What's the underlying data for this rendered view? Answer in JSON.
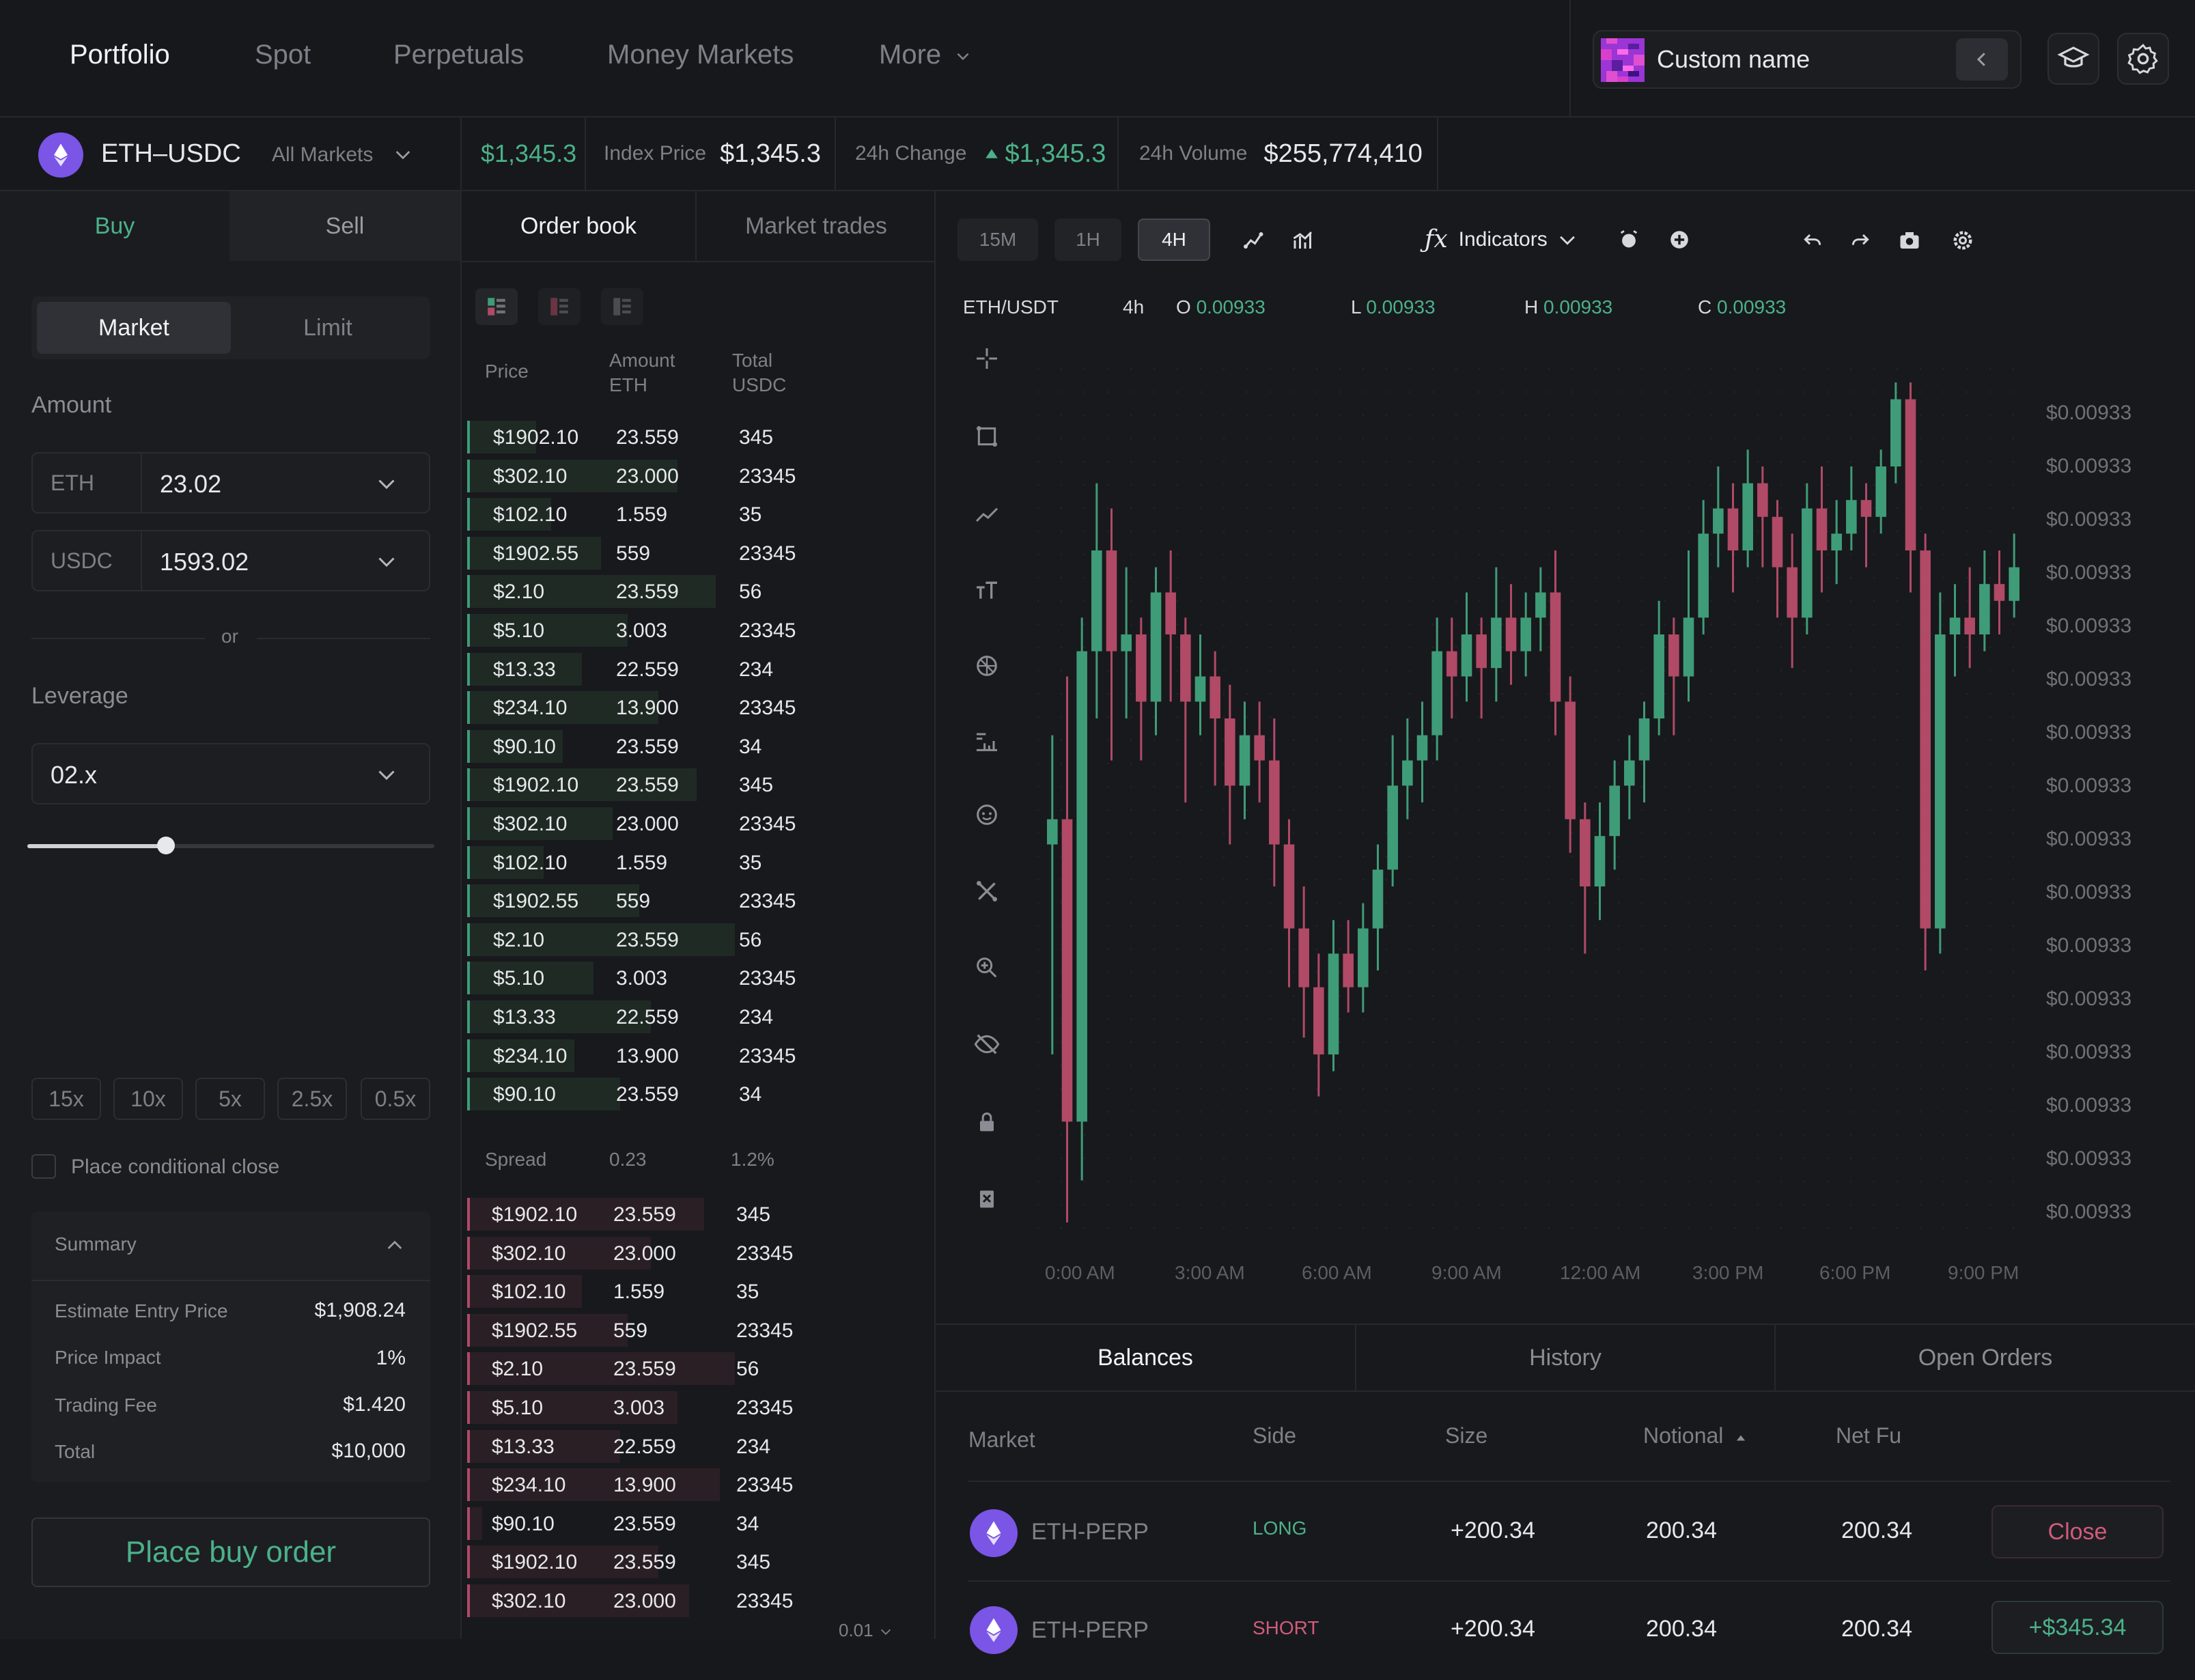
{
  "nav": {
    "items": [
      "Portfolio",
      "Spot",
      "Perpetuals",
      "Money Markets",
      "More"
    ],
    "active": 0,
    "user_name": "Custom name"
  },
  "ticker": {
    "pair": "ETH–USDC",
    "all_markets": "All Markets",
    "last_price": "$1,345.3",
    "index_label": "Index Price",
    "index_value": "$1,345.3",
    "change_label": "24h Change",
    "change_value": "$1,345.3",
    "volume_label": "24h Volume",
    "volume_value": "$255,774,410"
  },
  "order_form": {
    "buy_label": "Buy",
    "sell_label": "Sell",
    "market_label": "Market",
    "limit_label": "Limit",
    "amount_label": "Amount",
    "eth_unit": "ETH",
    "eth_value": "23.02",
    "usdc_unit": "USDC",
    "usdc_value": "1593.02",
    "or_label": "or",
    "leverage_label": "Leverage",
    "leverage_value": "02.x",
    "leverage_slider_fraction": 0.34,
    "leverage_presets": [
      "15x",
      "10x",
      "5x",
      "2.5x",
      "0.5x"
    ],
    "conditional_close_label": "Place conditional close",
    "summary_label": "Summary",
    "summary_rows": [
      {
        "label": "Estimate Entry Price",
        "value": "$1,908.24"
      },
      {
        "label": "Price Impact",
        "value": "1%"
      },
      {
        "label": "Trading Fee",
        "value": "$1.420"
      },
      {
        "label": "Total",
        "value": "$10,000"
      }
    ],
    "submit_label": "Place buy order"
  },
  "order_book": {
    "tab_orderbook": "Order book",
    "tab_trades": "Market trades",
    "col_price": "Price",
    "col_amount": "Amount",
    "col_amount_unit": "ETH",
    "col_total": "Total",
    "col_total_unit": "USDC",
    "asks": [
      [
        "$1902.10",
        "23.559",
        "345"
      ],
      [
        "$302.10",
        "23.000",
        "23345"
      ],
      [
        "$102.10",
        "1.559",
        "35"
      ],
      [
        "$1902.55",
        "559",
        "23345"
      ],
      [
        "$2.10",
        "23.559",
        "56"
      ],
      [
        "$5.10",
        "3.003",
        "23345"
      ],
      [
        "$13.33",
        "22.559",
        "234"
      ],
      [
        "$234.10",
        "13.900",
        "23345"
      ],
      [
        "$90.10",
        "23.559",
        "34"
      ],
      [
        "$1902.10",
        "23.559",
        "345"
      ],
      [
        "$302.10",
        "23.000",
        "23345"
      ],
      [
        "$102.10",
        "1.559",
        "35"
      ],
      [
        "$1902.55",
        "559",
        "23345"
      ],
      [
        "$2.10",
        "23.559",
        "56"
      ],
      [
        "$5.10",
        "3.003",
        "23345"
      ],
      [
        "$13.33",
        "22.559",
        "234"
      ],
      [
        "$234.10",
        "13.900",
        "23345"
      ],
      [
        "$90.10",
        "23.559",
        "34"
      ]
    ],
    "spread_label": "Spread",
    "spread_value": "0.23",
    "spread_pct": "1.2%",
    "bids": [
      [
        "$1902.10",
        "23.559",
        "345"
      ],
      [
        "$302.10",
        "23.000",
        "23345"
      ],
      [
        "$102.10",
        "1.559",
        "35"
      ],
      [
        "$1902.55",
        "559",
        "23345"
      ],
      [
        "$2.10",
        "23.559",
        "56"
      ],
      [
        "$5.10",
        "3.003",
        "23345"
      ],
      [
        "$13.33",
        "22.559",
        "234"
      ],
      [
        "$234.10",
        "13.900",
        "23345"
      ],
      [
        "$90.10",
        "23.559",
        "34"
      ],
      [
        "$1902.10",
        "23.559",
        "345"
      ],
      [
        "$302.10",
        "23.000",
        "23345"
      ]
    ],
    "ask_depth": [
      0.18,
      0.55,
      0.22,
      0.35,
      0.65,
      0.42,
      0.3,
      0.5,
      0.25,
      0.6,
      0.38,
      0.2,
      0.45,
      0.7,
      0.33,
      0.48,
      0.28,
      0.4
    ],
    "bid_depth": [
      0.62,
      0.48,
      0.3,
      0.42,
      0.7,
      0.55,
      0.4,
      0.66,
      0.04,
      0.5,
      0.58
    ],
    "precision": "0.01"
  },
  "chart": {
    "timeframes": [
      "15M",
      "1H",
      "4H"
    ],
    "active_timeframe": 2,
    "indicators_label": "Indicators",
    "symbol": "ETH/USDT",
    "interval": "4h",
    "o_label": "O",
    "o_value": "0.00933",
    "l_label": "L",
    "l_value": "0.00933",
    "h_label": "H",
    "h_value": "0.00933",
    "c_label": "C",
    "c_value": "0.00933",
    "colors": {
      "up": "#3f9c78",
      "down": "#b04a66"
    }
  },
  "chart_data": {
    "type": "candlestick",
    "y_tick_labels": [
      "$0.00933",
      "$0.00933",
      "$0.00933",
      "$0.00933",
      "$0.00933",
      "$0.00933",
      "$0.00933",
      "$0.00933",
      "$0.00933",
      "$0.00933",
      "$0.00933",
      "$0.00933",
      "$0.00933",
      "$0.00933",
      "$0.00933",
      "$0.00933"
    ],
    "x_tick_labels": [
      "0:00 AM",
      "3:00 AM",
      "6:00 AM",
      "9:00 AM",
      "12:00 AM",
      "3:00 PM",
      "6:00 PM",
      "9:00 PM"
    ],
    "ylim": [
      0,
      100
    ],
    "candles": [
      [
        45,
        48,
        20,
        58
      ],
      [
        48,
        12,
        0,
        65
      ],
      [
        12,
        68,
        5,
        72
      ],
      [
        68,
        80,
        60,
        88
      ],
      [
        80,
        68,
        55,
        85
      ],
      [
        68,
        70,
        60,
        78
      ],
      [
        70,
        62,
        55,
        72
      ],
      [
        62,
        75,
        58,
        78
      ],
      [
        75,
        70,
        62,
        80
      ],
      [
        70,
        62,
        50,
        72
      ],
      [
        62,
        65,
        58,
        70
      ],
      [
        65,
        60,
        52,
        68
      ],
      [
        60,
        52,
        45,
        64
      ],
      [
        52,
        58,
        48,
        62
      ],
      [
        58,
        55,
        50,
        62
      ],
      [
        55,
        45,
        40,
        60
      ],
      [
        45,
        35,
        28,
        48
      ],
      [
        35,
        28,
        22,
        40
      ],
      [
        28,
        20,
        15,
        32
      ],
      [
        20,
        32,
        18,
        36
      ],
      [
        32,
        28,
        25,
        36
      ],
      [
        28,
        35,
        25,
        38
      ],
      [
        35,
        42,
        30,
        45
      ],
      [
        42,
        52,
        40,
        58
      ],
      [
        52,
        55,
        48,
        60
      ],
      [
        55,
        58,
        50,
        62
      ],
      [
        58,
        68,
        55,
        72
      ],
      [
        68,
        65,
        60,
        72
      ],
      [
        65,
        70,
        62,
        75
      ],
      [
        70,
        66,
        60,
        72
      ],
      [
        66,
        72,
        62,
        78
      ],
      [
        72,
        68,
        64,
        76
      ],
      [
        68,
        72,
        65,
        75
      ],
      [
        72,
        75,
        68,
        78
      ],
      [
        75,
        62,
        58,
        80
      ],
      [
        62,
        48,
        44,
        65
      ],
      [
        48,
        40,
        32,
        50
      ],
      [
        40,
        46,
        36,
        50
      ],
      [
        46,
        52,
        42,
        55
      ],
      [
        52,
        55,
        48,
        58
      ],
      [
        55,
        60,
        50,
        62
      ],
      [
        60,
        70,
        58,
        74
      ],
      [
        70,
        65,
        58,
        72
      ],
      [
        65,
        72,
        62,
        80
      ],
      [
        72,
        82,
        70,
        86
      ],
      [
        82,
        85,
        78,
        90
      ],
      [
        85,
        80,
        75,
        88
      ],
      [
        80,
        88,
        78,
        92
      ],
      [
        88,
        84,
        78,
        90
      ],
      [
        84,
        78,
        72,
        86
      ],
      [
        78,
        72,
        66,
        82
      ],
      [
        72,
        85,
        70,
        88
      ],
      [
        85,
        80,
        75,
        90
      ],
      [
        80,
        82,
        76,
        86
      ],
      [
        82,
        86,
        80,
        90
      ],
      [
        86,
        84,
        78,
        88
      ],
      [
        84,
        90,
        82,
        92
      ],
      [
        90,
        98,
        88,
        100
      ],
      [
        98,
        80,
        75,
        100
      ],
      [
        80,
        35,
        30,
        82
      ],
      [
        35,
        70,
        32,
        75
      ],
      [
        70,
        72,
        65,
        76
      ],
      [
        72,
        70,
        66,
        78
      ],
      [
        70,
        76,
        68,
        80
      ],
      [
        76,
        74,
        70,
        80
      ],
      [
        74,
        78,
        72,
        82
      ]
    ]
  },
  "bottom": {
    "tabs": [
      "Balances",
      "History",
      "Open Orders"
    ],
    "active_tab": 0,
    "columns": [
      "Market",
      "Side",
      "Size",
      "Notional",
      "Net Fu"
    ],
    "rows": [
      {
        "market": "ETH-PERP",
        "side": "LONG",
        "size": "+200.34",
        "notional": "200.34",
        "netfunding": "200.34",
        "action": "Close"
      },
      {
        "market": "ETH-PERP",
        "side": "SHORT",
        "size": "+200.34",
        "notional": "200.34",
        "netfunding": "200.34",
        "action": "+$345.34"
      }
    ]
  }
}
